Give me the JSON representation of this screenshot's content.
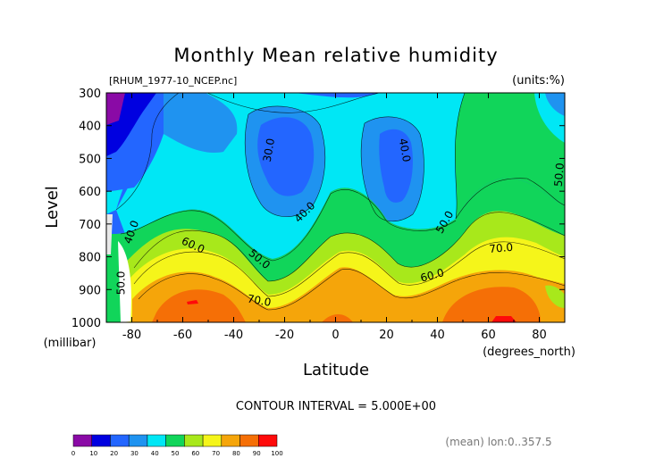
{
  "chart_data": {
    "type": "heatmap",
    "title": "Monthly Mean relative humidity",
    "subtitle_left": "[RHUM_1977-10_NCEP.nc]",
    "subtitle_right": "(units:%)",
    "xlabel": "Latitude",
    "xunit": "(degrees_north)",
    "ylabel": "Level",
    "yunit": "(millibar)",
    "xlim": [
      -90,
      90
    ],
    "ylim": [
      1000,
      300
    ],
    "x_ticks": [
      -80,
      -60,
      -40,
      -20,
      0,
      20,
      40,
      60,
      80
    ],
    "y_ticks": [
      300,
      400,
      500,
      600,
      700,
      800,
      900,
      1000
    ],
    "footer_contour": "CONTOUR INTERVAL = 5.000E+00",
    "footer_mean": "(mean) lon:0..357.5",
    "contour_labels": [
      {
        "text": "30.0",
        "x": -26,
        "y": 475,
        "angle": -80
      },
      {
        "text": "40.0",
        "x": 27,
        "y": 475,
        "angle": 80
      },
      {
        "text": "50.0",
        "x": 88,
        "y": 550,
        "angle": -85
      },
      {
        "text": "40.0",
        "x": -12,
        "y": 665,
        "angle": -45
      },
      {
        "text": "50.0",
        "x": 43,
        "y": 695,
        "angle": -60
      },
      {
        "text": "40.0",
        "x": -80,
        "y": 725,
        "angle": -70
      },
      {
        "text": "60.0",
        "x": -56,
        "y": 766,
        "angle": 25
      },
      {
        "text": "50.0",
        "x": -30,
        "y": 808,
        "angle": 40
      },
      {
        "text": "70.0",
        "x": 65,
        "y": 775,
        "angle": -5
      },
      {
        "text": "60.0",
        "x": 38,
        "y": 858,
        "angle": -15
      },
      {
        "text": "50.0",
        "x": -84,
        "y": 880,
        "angle": -90
      },
      {
        "text": "70.0",
        "x": -30,
        "y": 935,
        "angle": 10
      }
    ],
    "colorbar": {
      "ticks": [
        0,
        10,
        20,
        30,
        40,
        50,
        60,
        70,
        80,
        90,
        100
      ],
      "colors": [
        "#8a0aa6",
        "#0000e0",
        "#2366ff",
        "#1f93f0",
        "#00e7f5",
        "#11d55a",
        "#a8e81b",
        "#f5f51a",
        "#f5a50a",
        "#f56f06",
        "#ff0a0a"
      ]
    }
  }
}
